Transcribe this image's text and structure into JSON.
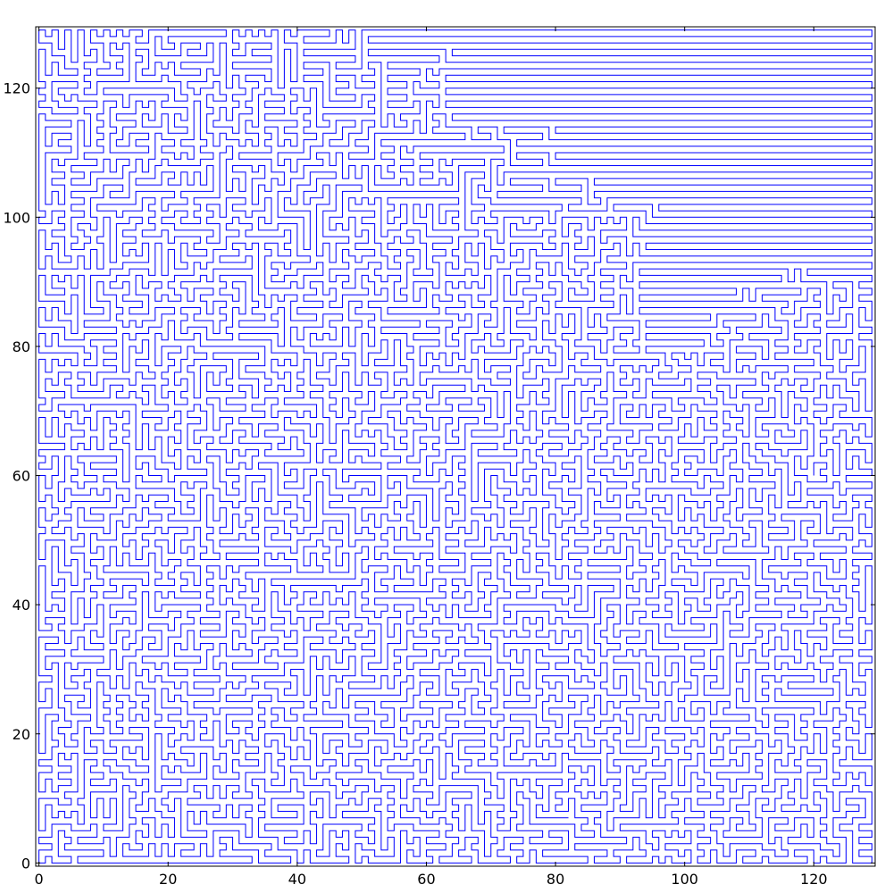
{
  "chart_data": {
    "type": "line",
    "title": "",
    "xlabel": "",
    "ylabel": "",
    "xlim": [
      -0.5,
      129.5
    ],
    "ylim": [
      -0.5,
      129.5
    ],
    "x_ticks": [
      0,
      20,
      40,
      60,
      80,
      100,
      120
    ],
    "y_ticks": [
      0,
      20,
      40,
      60,
      80,
      100,
      120
    ],
    "x_tick_labels": [
      "0",
      "20",
      "40",
      "60",
      "80",
      "100",
      "120"
    ],
    "y_tick_labels": [
      "0",
      "20",
      "40",
      "60",
      "80",
      "100",
      "120"
    ],
    "grid": false,
    "legend": "none",
    "series": [
      {
        "color": "#0000ff",
        "lattice_size": 130,
        "description_of_values": "a single space-filling walk visiting every integer point of a 130 x 130 grid"
      }
    ]
  }
}
